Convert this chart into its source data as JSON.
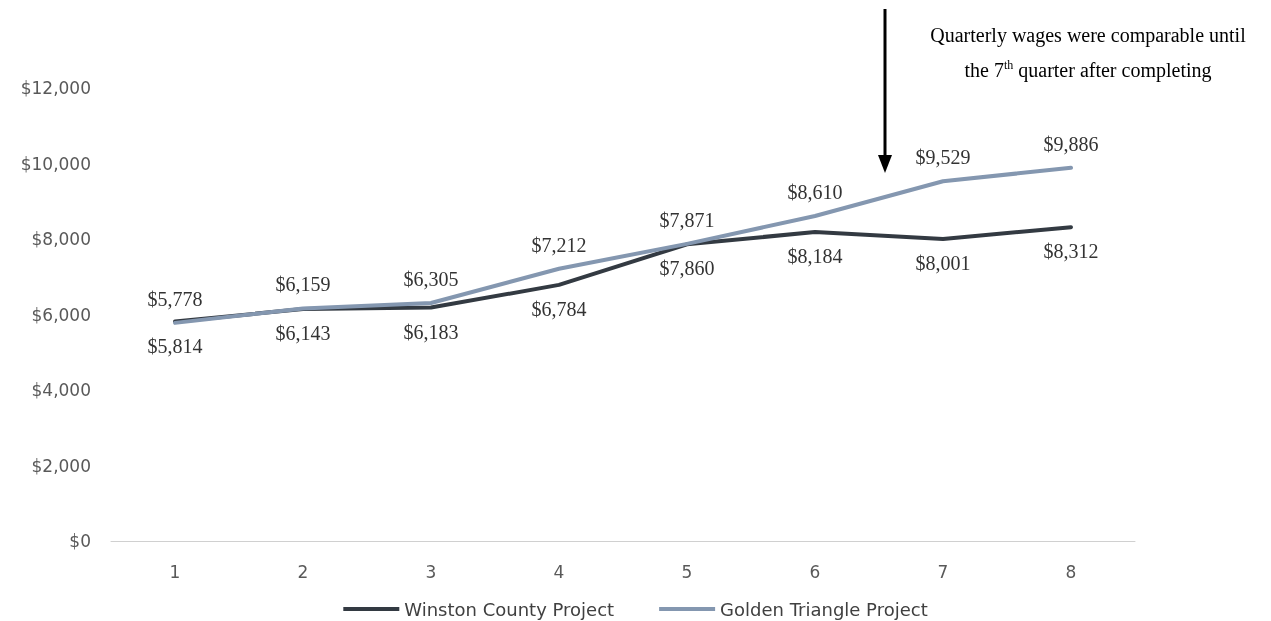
{
  "chart_data": {
    "type": "line",
    "categories": [
      "1",
      "2",
      "3",
      "4",
      "5",
      "6",
      "7",
      "8"
    ],
    "series": [
      {
        "name": "Winston County Project",
        "color": "#333a42",
        "values": [
          5814,
          6143,
          6183,
          6784,
          7860,
          8184,
          8001,
          8312
        ],
        "value_labels": [
          "$5,814",
          "$6,143",
          "$6,183",
          "$6,784",
          "$7,860",
          "$8,184",
          "$8,001",
          "$8,312"
        ]
      },
      {
        "name": "Golden Triangle Project",
        "color": "#8497b0",
        "values": [
          5778,
          6159,
          6305,
          7212,
          7871,
          8610,
          9529,
          9886
        ],
        "value_labels": [
          "$5,778",
          "$6,159",
          "$6,305",
          "$7,212",
          "$7,871",
          "$8,610",
          "$9,529",
          "$9,886"
        ]
      }
    ],
    "ylim": [
      0,
      12000
    ],
    "yticks": [
      {
        "value": 0,
        "label": "$0"
      },
      {
        "value": 2000,
        "label": "$2,000"
      },
      {
        "value": 4000,
        "label": "$4,000"
      },
      {
        "value": 6000,
        "label": "$6,000"
      },
      {
        "value": 8000,
        "label": "$8,000"
      },
      {
        "value": 10000,
        "label": "$10,000"
      },
      {
        "value": 12000,
        "label": "$12,000"
      }
    ],
    "grid": false,
    "legend": "bottom",
    "marker": "none",
    "line_style": "solid",
    "annotations": [
      "Quarterly wages were comparable until the 7$^{th}$ quarter after completing"
    ]
  }
}
